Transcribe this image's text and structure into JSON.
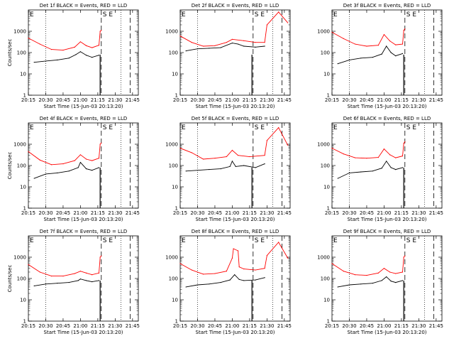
{
  "figure": {
    "xlabel": "Start Time (15-Jun-03 20:13:20)",
    "ylabel": "Counts/sec",
    "x_ticks": [
      "20:15",
      "20:30",
      "20:45",
      "21:00",
      "21:15",
      "21:30",
      "21:45"
    ],
    "y_ticks": [
      "1",
      "10",
      "100",
      "1000"
    ],
    "markers": {
      "left": "E",
      "right": "S E"
    },
    "colors": {
      "events": "#000000",
      "lld": "#ff0000"
    }
  },
  "chart_data": [
    {
      "type": "line",
      "title": "Det 1f BLACK = Events, RED = LLD",
      "show_xlabel": false,
      "show_ylabel": true,
      "series": [
        {
          "name": "Events",
          "color": "#000000",
          "x": [
            "20:20",
            "20:30",
            "20:40",
            "20:50",
            "20:56",
            "21:00",
            "21:05",
            "21:10",
            "21:16"
          ],
          "values": [
            35,
            40,
            45,
            55,
            80,
            110,
            75,
            60,
            75
          ]
        },
        {
          "name": "LLD",
          "color": "#ff0000",
          "x": [
            "20:15",
            "20:25",
            "20:35",
            "20:45",
            "20:55",
            "21:00",
            "21:05",
            "21:10",
            "21:16",
            "21:17",
            "21:18"
          ],
          "values": [
            480,
            250,
            140,
            130,
            180,
            320,
            210,
            170,
            220,
            1000,
            1100
          ]
        }
      ]
    },
    {
      "type": "line",
      "title": "Det 2f BLACK = Events, RED = LLD",
      "show_xlabel": false,
      "show_ylabel": false,
      "series": [
        {
          "name": "Events",
          "color": "#000000",
          "x": [
            "20:20",
            "20:30",
            "20:40",
            "20:50",
            "21:00",
            "21:05",
            "21:10",
            "21:20",
            "21:28"
          ],
          "values": [
            120,
            150,
            160,
            170,
            280,
            250,
            200,
            180,
            200
          ]
        },
        {
          "name": "LLD",
          "color": "#ff0000",
          "x": [
            "20:15",
            "20:25",
            "20:35",
            "20:45",
            "20:55",
            "21:00",
            "21:10",
            "21:20",
            "21:28",
            "21:30",
            "21:40",
            "21:48"
          ],
          "values": [
            600,
            300,
            200,
            210,
            300,
            420,
            360,
            300,
            300,
            2000,
            8000,
            2500
          ]
        }
      ]
    },
    {
      "type": "line",
      "title": "Det 3f BLACK = Events, RED = LLD",
      "show_xlabel": false,
      "show_ylabel": false,
      "series": [
        {
          "name": "Events",
          "color": "#000000",
          "x": [
            "20:20",
            "20:30",
            "20:40",
            "20:50",
            "20:58",
            "21:02",
            "21:06",
            "21:10",
            "21:16"
          ],
          "values": [
            30,
            45,
            55,
            60,
            85,
            200,
            100,
            70,
            90
          ]
        },
        {
          "name": "LLD",
          "color": "#ff0000",
          "x": [
            "20:15",
            "20:25",
            "20:35",
            "20:45",
            "20:55",
            "21:00",
            "21:05",
            "21:10",
            "21:16",
            "21:17",
            "21:18"
          ],
          "values": [
            900,
            450,
            250,
            200,
            220,
            700,
            350,
            230,
            250,
            1100,
            1300
          ]
        }
      ]
    },
    {
      "type": "line",
      "title": "Det 4f BLACK = Events, RED = LLD",
      "show_xlabel": false,
      "show_ylabel": true,
      "series": [
        {
          "name": "Events",
          "color": "#000000",
          "x": [
            "20:20",
            "20:30",
            "20:40",
            "20:50",
            "20:58",
            "21:00",
            "21:05",
            "21:10",
            "21:16"
          ],
          "values": [
            25,
            40,
            45,
            55,
            80,
            140,
            70,
            60,
            80
          ]
        },
        {
          "name": "LLD",
          "color": "#ff0000",
          "x": [
            "20:15",
            "20:25",
            "20:35",
            "20:45",
            "20:55",
            "21:00",
            "21:05",
            "21:10",
            "21:16",
            "21:17",
            "21:18"
          ],
          "values": [
            450,
            180,
            110,
            120,
            170,
            320,
            200,
            170,
            220,
            1000,
            1150
          ]
        }
      ]
    },
    {
      "type": "line",
      "title": "Det 5f BLACK = Events, RED = LLD",
      "show_xlabel": false,
      "show_ylabel": false,
      "series": [
        {
          "name": "Events",
          "color": "#000000",
          "x": [
            "20:20",
            "20:30",
            "20:40",
            "20:50",
            "20:58",
            "21:00",
            "21:03",
            "21:10",
            "21:20",
            "21:28"
          ],
          "values": [
            55,
            60,
            65,
            70,
            90,
            160,
            90,
            100,
            80,
            120
          ]
        },
        {
          "name": "LLD",
          "color": "#ff0000",
          "x": [
            "20:15",
            "20:25",
            "20:35",
            "20:45",
            "20:55",
            "21:00",
            "21:05",
            "21:15",
            "21:28",
            "21:30",
            "21:40",
            "21:48"
          ],
          "values": [
            650,
            400,
            200,
            220,
            260,
            520,
            300,
            260,
            300,
            1500,
            6000,
            900
          ]
        }
      ]
    },
    {
      "type": "line",
      "title": "Det 6f BLACK = Events, RED = LLD",
      "show_xlabel": false,
      "show_ylabel": false,
      "series": [
        {
          "name": "Events",
          "color": "#000000",
          "x": [
            "20:20",
            "20:30",
            "20:40",
            "20:50",
            "20:58",
            "21:02",
            "21:06",
            "21:10",
            "21:16"
          ],
          "values": [
            25,
            45,
            50,
            55,
            75,
            160,
            80,
            65,
            80
          ]
        },
        {
          "name": "LLD",
          "color": "#ff0000",
          "x": [
            "20:15",
            "20:25",
            "20:35",
            "20:45",
            "20:55",
            "21:00",
            "21:05",
            "21:10",
            "21:16",
            "21:17",
            "21:18"
          ],
          "values": [
            650,
            350,
            230,
            220,
            240,
            600,
            320,
            230,
            280,
            1100,
            1300
          ]
        }
      ]
    },
    {
      "type": "line",
      "title": "Det 7f BLACK = Events, RED = LLD",
      "show_xlabel": true,
      "show_ylabel": false,
      "series": [
        {
          "name": "Events",
          "color": "#000000",
          "x": [
            "20:20",
            "20:30",
            "20:40",
            "20:50",
            "20:58",
            "21:00",
            "21:05",
            "21:10",
            "21:16"
          ],
          "values": [
            45,
            55,
            60,
            65,
            80,
            95,
            80,
            70,
            80
          ]
        },
        {
          "name": "LLD",
          "color": "#ff0000",
          "x": [
            "20:15",
            "20:25",
            "20:35",
            "20:45",
            "20:55",
            "21:00",
            "21:05",
            "21:10",
            "21:16",
            "21:17",
            "21:18"
          ],
          "values": [
            450,
            200,
            130,
            130,
            170,
            220,
            180,
            150,
            180,
            1000,
            1150
          ]
        }
      ]
    },
    {
      "type": "line",
      "title": "Det 8f BLACK = Events, RED = LLD",
      "show_xlabel": true,
      "show_ylabel": true,
      "series": [
        {
          "name": "Events",
          "color": "#000000",
          "x": [
            "20:20",
            "20:30",
            "20:40",
            "20:50",
            "20:58",
            "21:02",
            "21:06",
            "21:10",
            "21:20",
            "21:28"
          ],
          "values": [
            40,
            50,
            55,
            65,
            85,
            150,
            90,
            80,
            85,
            110
          ]
        },
        {
          "name": "LLD",
          "color": "#ff0000",
          "x": [
            "20:15",
            "20:25",
            "20:35",
            "20:45",
            "20:55",
            "21:00",
            "21:01",
            "21:05",
            "21:06",
            "21:10",
            "21:20",
            "21:28",
            "21:30",
            "21:40",
            "21:48"
          ],
          "values": [
            500,
            250,
            160,
            170,
            220,
            900,
            2500,
            2000,
            350,
            280,
            250,
            300,
            1200,
            5000,
            900
          ]
        }
      ]
    },
    {
      "type": "line",
      "title": "Det 9f BLACK = Events, RED = LLD",
      "show_xlabel": true,
      "show_ylabel": false,
      "series": [
        {
          "name": "Events",
          "color": "#000000",
          "x": [
            "20:20",
            "20:30",
            "20:40",
            "20:50",
            "20:58",
            "21:02",
            "21:06",
            "21:10",
            "21:16"
          ],
          "values": [
            40,
            50,
            55,
            60,
            80,
            120,
            75,
            65,
            80
          ]
        },
        {
          "name": "LLD",
          "color": "#ff0000",
          "x": [
            "20:15",
            "20:25",
            "20:35",
            "20:45",
            "20:55",
            "21:00",
            "21:05",
            "21:10",
            "21:16",
            "21:17",
            "21:18"
          ],
          "values": [
            500,
            220,
            150,
            140,
            180,
            300,
            200,
            170,
            200,
            1000,
            1150
          ]
        }
      ]
    }
  ]
}
